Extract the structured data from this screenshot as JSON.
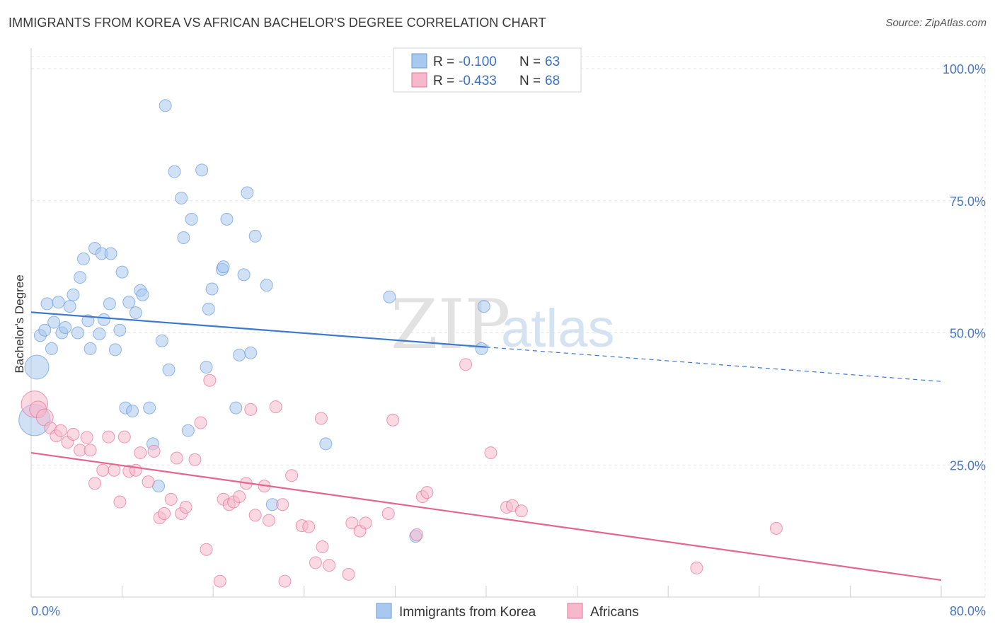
{
  "header": {
    "title": "IMMIGRANTS FROM KOREA VS AFRICAN BACHELOR'S DEGREE CORRELATION CHART",
    "source": "Source: ZipAtlas.com"
  },
  "watermark": {
    "zip": "ZIP",
    "atlas": "atlas"
  },
  "legend": {
    "rows": [
      {
        "r_label": "R = ",
        "r_value": "-0.100",
        "n_label": "N = ",
        "n_value": "63",
        "color": "#a9c8ef"
      },
      {
        "r_label": "R = ",
        "r_value": "-0.433",
        "n_label": "N = ",
        "n_value": "68",
        "color": "#f6b9cc"
      }
    ]
  },
  "chart_data": {
    "type": "scatter",
    "title": "IMMIGRANTS FROM KOREA VS AFRICAN BACHELOR'S DEGREE CORRELATION CHART",
    "xlabel": "",
    "ylabel": "Bachelor's Degree",
    "xlim": [
      0,
      80
    ],
    "ylim": [
      0,
      100
    ],
    "x_tick_labels": [
      "0.0%",
      "80.0%"
    ],
    "y_tick_labels": [
      "100.0%",
      "75.0%",
      "50.0%",
      "25.0%"
    ],
    "y_ticks": [
      100,
      75,
      50,
      25
    ],
    "grid": true,
    "legend_position": "top-center",
    "series": [
      {
        "name": "Immigrants from Korea",
        "color": "#6a9bd8",
        "fill": "#a9c8ef",
        "trend": {
          "x": [
            0,
            40
          ],
          "y": [
            53.9,
            47.3
          ],
          "dashed_to": [
            80,
            40.8
          ]
        },
        "points": [
          [
            0.5,
            43.5,
            2
          ],
          [
            0.3,
            33.5,
            2.6
          ],
          [
            0.8,
            49.5,
            1
          ],
          [
            1.2,
            50.5,
            1
          ],
          [
            1.4,
            55.5,
            1
          ],
          [
            1.8,
            47.0,
            1
          ],
          [
            2.0,
            52.0,
            1
          ],
          [
            2.4,
            55.8,
            1
          ],
          [
            2.7,
            50.0,
            1
          ],
          [
            3.0,
            51.0,
            1
          ],
          [
            3.4,
            55.0,
            1
          ],
          [
            3.7,
            57.2,
            1
          ],
          [
            4.1,
            50.0,
            1
          ],
          [
            4.3,
            60.5,
            1
          ],
          [
            4.6,
            64.0,
            1
          ],
          [
            5.0,
            52.3,
            1
          ],
          [
            5.2,
            47.0,
            1
          ],
          [
            5.6,
            66.0,
            1
          ],
          [
            6.0,
            49.8,
            1
          ],
          [
            6.2,
            65.0,
            1
          ],
          [
            6.4,
            52.5,
            1
          ],
          [
            6.9,
            55.5,
            1
          ],
          [
            7.0,
            65.0,
            1
          ],
          [
            7.4,
            46.8,
            1
          ],
          [
            7.8,
            50.5,
            1
          ],
          [
            8.0,
            61.5,
            1
          ],
          [
            8.3,
            35.8,
            1
          ],
          [
            8.6,
            55.8,
            1
          ],
          [
            8.9,
            35.2,
            1
          ],
          [
            9.2,
            53.8,
            1
          ],
          [
            9.6,
            58.0,
            1
          ],
          [
            9.8,
            57.2,
            1
          ],
          [
            10.4,
            35.8,
            1
          ],
          [
            10.7,
            29.0,
            1
          ],
          [
            11.2,
            21.0,
            1
          ],
          [
            11.5,
            48.5,
            1
          ],
          [
            11.8,
            93.0,
            1
          ],
          [
            12.1,
            43.0,
            1
          ],
          [
            12.6,
            80.5,
            1
          ],
          [
            13.2,
            75.5,
            1
          ],
          [
            13.4,
            68.0,
            1
          ],
          [
            13.8,
            31.5,
            1
          ],
          [
            14.1,
            71.5,
            1
          ],
          [
            15.0,
            80.8,
            1
          ],
          [
            15.4,
            43.5,
            1
          ],
          [
            15.6,
            54.5,
            1
          ],
          [
            15.9,
            58.3,
            1
          ],
          [
            16.8,
            62.0,
            1
          ],
          [
            16.9,
            62.5,
            1
          ],
          [
            17.2,
            71.5,
            1
          ],
          [
            18.0,
            35.8,
            1
          ],
          [
            18.3,
            45.8,
            1
          ],
          [
            18.7,
            61.0,
            1
          ],
          [
            19.0,
            76.5,
            1
          ],
          [
            19.3,
            46.2,
            1
          ],
          [
            19.7,
            68.3,
            1
          ],
          [
            20.7,
            59.0,
            1
          ],
          [
            21.2,
            17.5,
            1
          ],
          [
            25.9,
            29.0,
            1
          ],
          [
            31.5,
            56.8,
            1
          ],
          [
            33.8,
            11.5,
            1
          ],
          [
            39.6,
            47.0,
            1
          ],
          [
            39.8,
            55.0,
            1
          ]
        ]
      },
      {
        "name": "Africans",
        "color": "#e96f9a",
        "fill": "#f6b9cc",
        "trend": {
          "x": [
            0,
            80
          ],
          "y": [
            27.3,
            3.2
          ]
        },
        "points": [
          [
            0.3,
            36.5,
            2.2
          ],
          [
            0.6,
            35.5,
            1.4
          ],
          [
            1.2,
            34.0,
            1.4
          ],
          [
            1.7,
            32.0,
            1
          ],
          [
            2.2,
            30.5,
            1
          ],
          [
            2.6,
            31.5,
            1
          ],
          [
            3.2,
            29.3,
            1
          ],
          [
            3.7,
            30.8,
            1
          ],
          [
            4.3,
            27.8,
            1
          ],
          [
            4.9,
            30.2,
            1
          ],
          [
            5.2,
            27.8,
            1
          ],
          [
            5.6,
            21.5,
            1
          ],
          [
            6.3,
            24.0,
            1
          ],
          [
            6.8,
            30.3,
            1
          ],
          [
            7.3,
            24.0,
            1
          ],
          [
            7.8,
            18.0,
            1
          ],
          [
            8.2,
            30.3,
            1
          ],
          [
            8.6,
            23.8,
            1
          ],
          [
            9.2,
            24.0,
            1
          ],
          [
            9.6,
            27.3,
            1
          ],
          [
            10.3,
            21.8,
            1
          ],
          [
            10.8,
            27.6,
            1
          ],
          [
            11.3,
            15.0,
            1
          ],
          [
            11.7,
            15.8,
            1
          ],
          [
            12.3,
            18.5,
            1
          ],
          [
            12.8,
            26.3,
            1
          ],
          [
            13.2,
            15.8,
            1
          ],
          [
            13.6,
            17.0,
            1
          ],
          [
            14.4,
            26.0,
            1
          ],
          [
            14.9,
            33.0,
            1
          ],
          [
            15.4,
            9.0,
            1
          ],
          [
            15.7,
            41.0,
            1
          ],
          [
            16.6,
            3.0,
            1
          ],
          [
            16.9,
            18.5,
            1
          ],
          [
            17.4,
            17.5,
            1
          ],
          [
            17.8,
            18.0,
            1
          ],
          [
            18.3,
            19.0,
            1
          ],
          [
            18.9,
            21.5,
            1
          ],
          [
            19.3,
            35.5,
            1
          ],
          [
            19.7,
            15.5,
            1
          ],
          [
            20.5,
            21.0,
            1
          ],
          [
            20.9,
            14.5,
            1
          ],
          [
            21.5,
            36.0,
            1
          ],
          [
            22.1,
            17.5,
            1
          ],
          [
            22.3,
            3.0,
            1
          ],
          [
            22.9,
            23.0,
            1
          ],
          [
            23.8,
            13.5,
            1
          ],
          [
            24.4,
            13.3,
            1
          ],
          [
            25.0,
            6.5,
            1
          ],
          [
            25.6,
            9.5,
            1
          ],
          [
            25.5,
            33.8,
            1
          ],
          [
            26.2,
            6.0,
            1
          ],
          [
            27.9,
            4.3,
            1
          ],
          [
            28.2,
            14.0,
            1
          ],
          [
            28.9,
            12.5,
            1
          ],
          [
            29.4,
            14.0,
            1
          ],
          [
            31.4,
            15.8,
            1
          ],
          [
            31.8,
            33.5,
            1
          ],
          [
            33.9,
            11.8,
            1
          ],
          [
            34.4,
            19.0,
            1
          ],
          [
            34.8,
            19.8,
            1
          ],
          [
            38.2,
            44.0,
            1
          ],
          [
            40.4,
            27.3,
            1
          ],
          [
            41.8,
            17.0,
            1
          ],
          [
            42.3,
            17.3,
            1
          ],
          [
            43.1,
            16.3,
            1
          ],
          [
            58.5,
            5.5,
            1
          ],
          [
            65.5,
            13.0,
            1
          ]
        ]
      }
    ]
  },
  "bottom_legend": {
    "items": [
      {
        "label": "Immigrants from Korea",
        "color": "#a9c8ef"
      },
      {
        "label": "Africans",
        "color": "#f6b9cc"
      }
    ]
  }
}
